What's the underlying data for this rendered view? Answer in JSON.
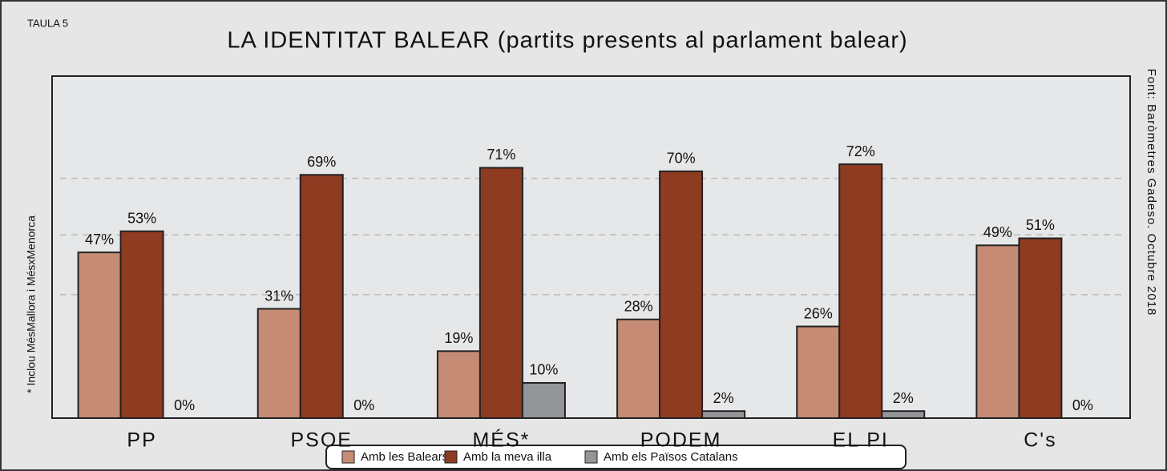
{
  "label": "TAULA 5",
  "chart_data": {
    "type": "bar",
    "title": "LA IDENTITAT BALEAR (partits presents al parlament balear)",
    "note": "* Inclou MésMallora i MésxMenorca",
    "source": "Font: Baròmetres Gadeso. Octubre 2018",
    "categories": [
      "PP",
      "PSOE",
      "MÉS*",
      "PODEM",
      "EL PI",
      "C's"
    ],
    "series": [
      {
        "name": "Amb les Balears",
        "color": "#c68b74",
        "values": [
          47,
          31,
          19,
          28,
          26,
          49
        ],
        "value_labels": [
          "47%",
          "31%",
          "19%",
          "28%",
          "26%",
          "49%"
        ]
      },
      {
        "name": "Amb la meva illa",
        "color": "#8e3b22",
        "values": [
          53,
          69,
          71,
          70,
          72,
          51
        ],
        "value_labels": [
          "53%",
          "69%",
          "71%",
          "70%",
          "72%",
          "51%"
        ]
      },
      {
        "name": "Amb els Països Catalans",
        "color": "#939598",
        "values": [
          0,
          0,
          10,
          2,
          2,
          0
        ],
        "value_labels": [
          "0%",
          "0%",
          "10%",
          "2%",
          "2%",
          "0%"
        ]
      }
    ],
    "ylim": [
      0,
      97
    ],
    "yticks": [
      35,
      52,
      68
    ],
    "grid": true,
    "legend": "bottom"
  }
}
